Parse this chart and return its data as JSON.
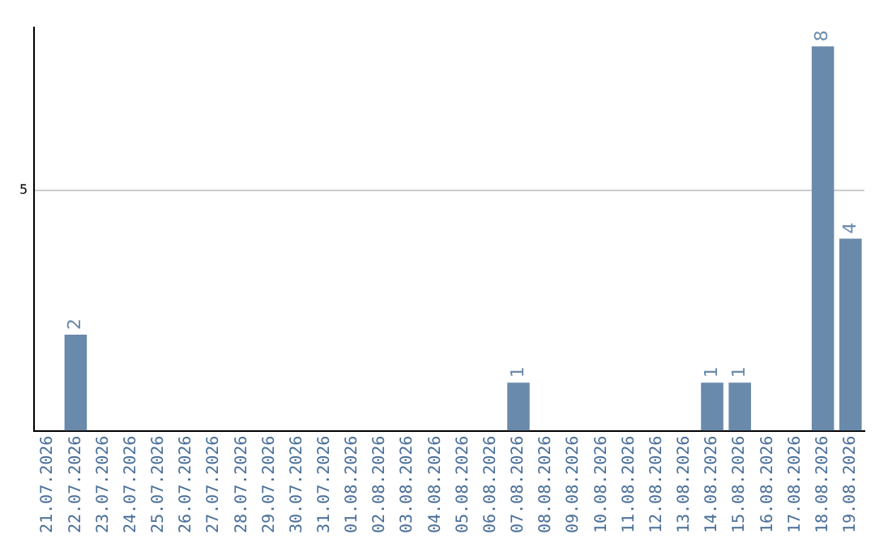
{
  "chart_data": {
    "type": "bar",
    "categories": [
      "21.07.2026",
      "22.07.2026",
      "23.07.2026",
      "24.07.2026",
      "25.07.2026",
      "26.07.2026",
      "27.07.2026",
      "28.07.2026",
      "29.07.2026",
      "30.07.2026",
      "31.07.2026",
      "01.08.2026",
      "02.08.2026",
      "03.08.2026",
      "04.08.2026",
      "05.08.2026",
      "06.08.2026",
      "07.08.2026",
      "08.08.2026",
      "09.08.2026",
      "10.08.2026",
      "11.08.2026",
      "12.08.2026",
      "13.08.2026",
      "14.08.2026",
      "15.08.2026",
      "16.08.2026",
      "17.08.2026",
      "18.08.2026",
      "19.08.2026"
    ],
    "values": [
      0,
      2,
      0,
      0,
      0,
      0,
      0,
      0,
      0,
      0,
      0,
      0,
      0,
      0,
      0,
      0,
      0,
      1,
      0,
      0,
      0,
      0,
      0,
      0,
      1,
      1,
      0,
      0,
      8,
      4
    ],
    "value_labels": [
      null,
      "2",
      null,
      null,
      null,
      null,
      null,
      null,
      null,
      null,
      null,
      null,
      null,
      null,
      null,
      null,
      null,
      "1",
      null,
      null,
      null,
      null,
      null,
      null,
      "1",
      "1",
      null,
      null,
      "8",
      "4"
    ],
    "color": "#6a8aab",
    "ylim": [
      0,
      8.4
    ],
    "yticks": [
      5
    ],
    "grid": "y",
    "legend": false
  }
}
